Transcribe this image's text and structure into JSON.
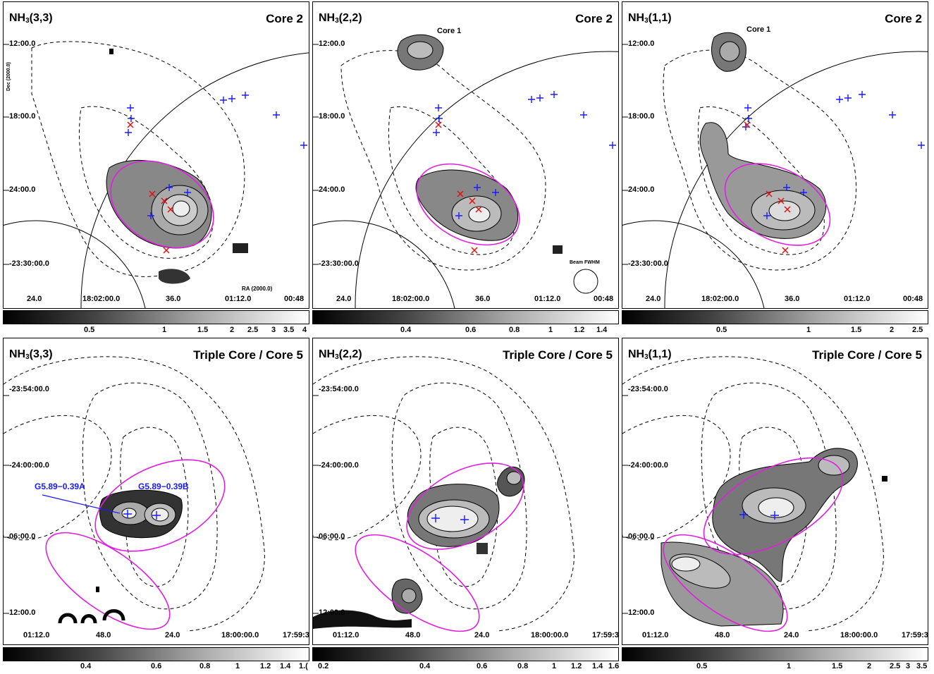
{
  "panels": [
    {
      "id": "p1",
      "line": "NH",
      "line_sub": "3",
      "line_trans": "(3,3)",
      "title": "Core 2",
      "y_ticks": [
        "12:00.0",
        "18:00.0",
        "24:00.0",
        "-23:30:00.0"
      ],
      "x_ticks": [
        "24.0",
        "18:02:00.0",
        "36.0",
        "01:12.0",
        "00:48"
      ],
      "dec_label": "Dec (2000.0)",
      "ra_label": "RA (2000.0)"
    },
    {
      "id": "p2",
      "line": "NH",
      "line_sub": "3",
      "line_trans": "(2,2)",
      "title": "Core 2",
      "core_label": "Core 1",
      "y_ticks": [
        "12:00.0",
        "18:00.0",
        "24:00.0",
        "-23:30:00.0"
      ],
      "x_ticks": [
        "24.0",
        "18:02:00.0",
        "36.0",
        "01:12.0",
        "00:48"
      ],
      "beam_label": "Beam FWHM"
    },
    {
      "id": "p3",
      "line": "NH",
      "line_sub": "3",
      "line_trans": "(1,1)",
      "title": "Core 2",
      "core_label": "Core 1",
      "y_ticks": [
        "12:00.0",
        "18:00.0",
        "24:00.0",
        "-23:30:00.0"
      ],
      "x_ticks": [
        "24.0",
        "18:02:00.0",
        "36.0",
        "01:12.0",
        "00:48"
      ]
    },
    {
      "id": "p4",
      "line": "NH",
      "line_sub": "3",
      "line_trans": "(3,3)",
      "title": "Triple Core / Core 5",
      "y_ticks": [
        "-23:54:00.0",
        "-24:00:00.0",
        "06:00.0",
        "12:00.0"
      ],
      "x_ticks": [
        "01:12.0",
        "48.0",
        "24.0",
        "18:00:00.0",
        "17:59:3"
      ],
      "src_a": "G5.89−0.39A",
      "src_b": "G5.89−0.39B"
    },
    {
      "id": "p5",
      "line": "NH",
      "line_sub": "3",
      "line_trans": "(2,2)",
      "title": "Triple Core / Core 5",
      "y_ticks": [
        "-23:54:00.0",
        "-24:00:00.0",
        "06:00.0",
        "12:00.0"
      ],
      "x_ticks": [
        "01:12.0",
        "48.0",
        "24.0",
        "18:00:00.0",
        "17:59:3"
      ]
    },
    {
      "id": "p6",
      "line": "NH",
      "line_sub": "3",
      "line_trans": "(1,1)",
      "title": "Triple Core / Core 5",
      "y_ticks": [
        "-23:54:00.0",
        "-24:00:00.0",
        "06:00.0",
        "12:00.0"
      ],
      "x_ticks": [
        "01:12.0",
        "48.0",
        "24.0",
        "18:00:00.0",
        "17:59:3"
      ]
    }
  ],
  "colorbars": [
    {
      "ticks": [
        "0.5",
        "1",
        "1.5",
        "2",
        "2.5",
        "3",
        "3.5",
        "4"
      ]
    },
    {
      "ticks": [
        "0.4",
        "0.6",
        "0.8",
        "1",
        "1.2",
        "1.4"
      ]
    },
    {
      "ticks": [
        "0.5",
        "1",
        "1.5",
        "2",
        "2.5"
      ]
    },
    {
      "ticks": [
        "0.4",
        "0.6",
        "0.8",
        "1",
        "1.2",
        "1.4",
        "1.("
      ]
    },
    {
      "ticks": [
        "0.2",
        "0.4",
        "0.6",
        "0.8",
        "1",
        "1.2",
        "1.4",
        "1.6"
      ]
    },
    {
      "ticks": [
        "0.5",
        "1",
        "1.5",
        "2",
        "2.5",
        "3",
        "3.5"
      ]
    }
  ],
  "colors": {
    "ellipse": "#e020e0",
    "plus": "#1a1aff",
    "cross": "#e01010"
  }
}
